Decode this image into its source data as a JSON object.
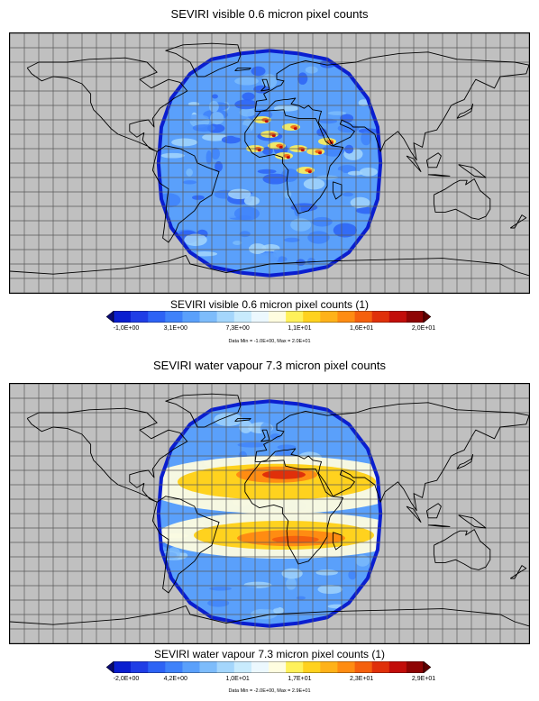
{
  "panels": [
    {
      "title": "SEVIRI visible 0.6 micron pixel counts",
      "colorbar_title": "SEVIRI visible 0.6 micron pixel counts (1)",
      "tick_labels": [
        "-1,0E+00",
        "3,1E+00",
        "7,3E+00",
        "1,1E+01",
        "1,6E+01",
        "2,0E+01"
      ],
      "data_range": "Data Min = -1.0E+00,  Max = 2.0E+01",
      "colors": [
        "#0a1ed0",
        "#1f3de6",
        "#2d63f5",
        "#3f82fa",
        "#5aa0fb",
        "#7dbcfb",
        "#a4d6fc",
        "#c8ebfd",
        "#ecf8fe",
        "#fffde0",
        "#fff15a",
        "#ffd21e",
        "#ffb219",
        "#ff8c12",
        "#f5600d",
        "#e0300a",
        "#c20d0a",
        "#8e0404"
      ],
      "end_left": "#0a0a72",
      "end_right": "#5c0000",
      "grid_lon": "#595959"
    },
    {
      "title": "SEVIRI water vapour 7.3 micron pixel counts",
      "colorbar_title": "SEVIRI water vapour 7.3 micron pixel counts (1)",
      "tick_labels": [
        "-2,0E+00",
        "4,2E+00",
        "1,0E+01",
        "1,7E+01",
        "2,3E+01",
        "2,9E+01"
      ],
      "data_range": "Data Min = -2.0E+00,  Max = 2.9E+01",
      "colors": [
        "#0a1ed0",
        "#1f3de6",
        "#2d63f5",
        "#3f82fa",
        "#5aa0fb",
        "#7dbcfb",
        "#a4d6fc",
        "#c8ebfd",
        "#ecf8fe",
        "#fffde0",
        "#fff15a",
        "#ffd21e",
        "#ffb219",
        "#ff8c12",
        "#f5600d",
        "#e0300a",
        "#c20d0a",
        "#8e0404"
      ],
      "end_left": "#0a0a72",
      "end_right": "#5c0000",
      "grid_lon": "#595959"
    }
  ]
}
